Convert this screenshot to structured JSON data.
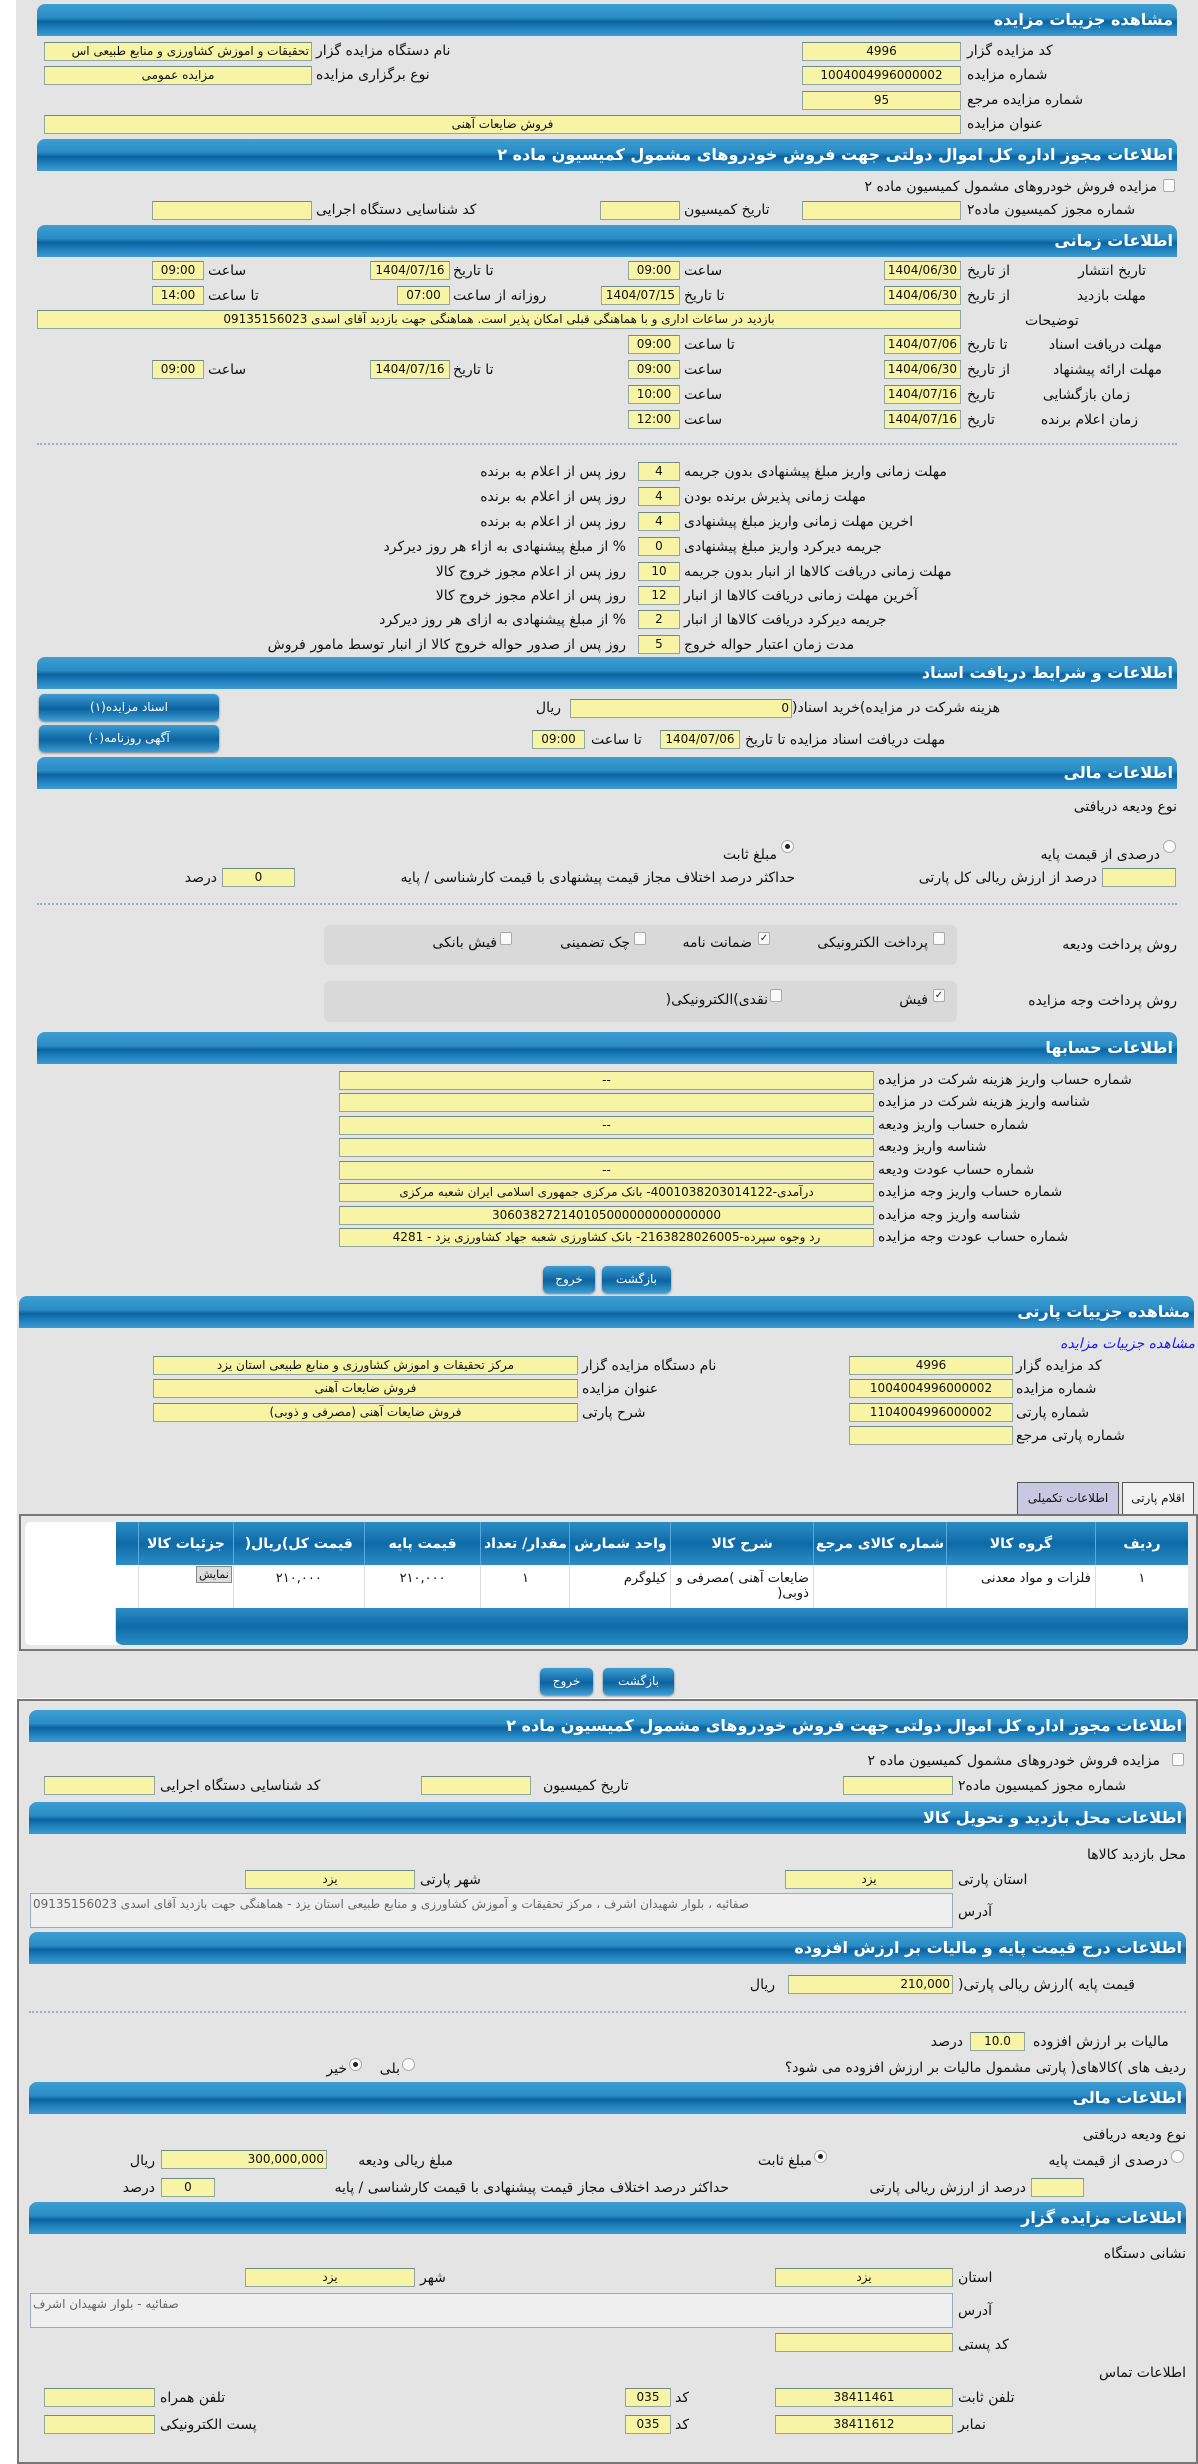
{
  "auction": {
    "title": "مشاهده جزییات مزایده",
    "code_label": "کد مزایده گزار",
    "code": "4996",
    "org_label": "نام دستگاه مزایده گزار",
    "org": "تحقیقات و اموزش کشاورزی و منابع طبیعی اس",
    "number_label": "شماره مزایده",
    "number": "1004004996000002",
    "type_label": "نوع برگزاری مزایده",
    "type": "مزایده عمومی",
    "ref_label": "شماره مزایده مرجع",
    "ref": "95",
    "subject_label": "عنوان مزایده",
    "subject": "فروش ضایعات آهنی"
  },
  "permit": {
    "title": "اطلاعات مجوز اداره کل اموال دولتی جهت فروش خودروهای مشمول کمیسیون ماده ۲",
    "checkbox_label": "مزایده فروش خودروهای مشمول کمیسیون ماده ۲",
    "checked": false,
    "permit_no_label": "شماره مجوز کمیسیون ماده۲",
    "date_label": "تاریخ کمیسیون",
    "exec_code_label": "کد شناسایی دستگاه اجرایی"
  },
  "timing": {
    "title": "اطلاعات زمانی",
    "from_date": "از تاریخ",
    "to_date": "تا تاریخ",
    "date": "تاریخ",
    "time": "ساعت",
    "to_time": "تا ساعت",
    "daily_from": "روزانه از ساعت",
    "publish_label": "تاریخ انتشار",
    "publish_from": "1404/06/30",
    "publish_from_time": "09:00",
    "publish_to": "1404/07/16",
    "publish_to_time": "09:00",
    "visit_label": "مهلت بازدید",
    "visit_from": "1404/06/30",
    "visit_to": "1404/07/15",
    "visit_daily_from": "07:00",
    "visit_daily_to": "14:00",
    "notes_label": "توضیحات",
    "notes": "بازدید در ساعات اداری و با هماهنگی قبلی امکان پذیر است. هماهنگی جهت بازدید آقای اسدی 09135156023",
    "docs_label": "مهلت دریافت اسناد",
    "docs_to": "1404/07/06",
    "docs_to_time": "09:00",
    "offer_label": "مهلت ارائه پیشنهاد",
    "offer_from": "1404/06/30",
    "offer_from_time": "09:00",
    "offer_to": "1404/07/16",
    "offer_to_time": "09:00",
    "opening_label": "زمان بازگشایی",
    "opening_date": "1404/07/16",
    "opening_time": "10:00",
    "winner_label": "زمان اعلام برنده",
    "winner_date": "1404/07/16",
    "winner_time": "12:00"
  },
  "deadlines": [
    {
      "label": "مهلت زمانی واریز مبلغ پیشنهادی بدون جریمه",
      "value": "4",
      "suffix": "روز پس از اعلام به برنده"
    },
    {
      "label": "مهلت زمانی پذیرش برنده بودن",
      "value": "4",
      "suffix": "روز پس از اعلام به برنده"
    },
    {
      "label": "اخرین مهلت زمانی واریز مبلغ پیشنهادی",
      "value": "4",
      "suffix": "روز پس از اعلام به برنده"
    },
    {
      "label": "جریمه دیرکرد واریز مبلغ پیشنهادی",
      "value": "0",
      "suffix": "% از مبلغ پیشنهادی به ازاء هر روز دیرکرد"
    },
    {
      "label": "مهلت زمانی دریافت کالاها از انبار بدون جریمه",
      "value": "10",
      "suffix": "روز پس از اعلام مجوز خروج کالا"
    },
    {
      "label": "آخرین مهلت زمانی دریافت کالاها از انبار",
      "value": "12",
      "suffix": "روز پس از اعلام مجوز خروج کالا"
    },
    {
      "label": "جریمه دیرکرد دریافت کالاها از انبار",
      "value": "2",
      "suffix": "% از مبلغ پیشنهادی به ازای هر روز دیرکرد"
    },
    {
      "label": "مدت زمان اعتبار حواله خروج",
      "value": "5",
      "suffix": "روز پس از صدور حواله خروج کالا از انبار توسط مامور فروش"
    }
  ],
  "documents": {
    "title": "اطلاعات و شرایط دریافت اسناد",
    "fee_label": "هزینه شرکت در مزایده)خرید اسناد(",
    "fee": "0",
    "currency": "ریال",
    "deadline_label": "مهلت دریافت اسناد مزایده تا تاریخ",
    "deadline_date": "1404/07/06",
    "to_time": "تا ساعت",
    "deadline_time": "09:00",
    "docs_button": "اسناد مزایده(۱)",
    "ads_button": "آگهی روزنامه(۰)"
  },
  "finance": {
    "title": "اطلاعات مالی",
    "deposit_type_label": "نوع ودیعه دریافتی",
    "percent_option": "درصدی از قیمت پایه",
    "fixed_option": "مبلغ ثابت",
    "selected": "fixed",
    "percent_of_total_label": "درصد از ارزش ریالی کل پارتی",
    "percent_of_total": "",
    "max_diff_label": "حداکثر درصد اختلاف مجاز قیمت پیشنهادی با قیمت کارشناسی / پایه",
    "max_diff": "0",
    "percent_unit": "درصد",
    "deposit_method_label": "روش پرداخت ودیعه",
    "deposit_methods": [
      {
        "label": "پرداخت الکترونیکی",
        "checked": false
      },
      {
        "label": "ضمانت نامه",
        "checked": true
      },
      {
        "label": "چک تضمینی",
        "checked": false
      },
      {
        "label": "فیش بانکی",
        "checked": false
      }
    ],
    "payment_method_label": "روش پرداخت وجه مزایده",
    "payment_methods": [
      {
        "label": "فیش",
        "checked": true
      },
      {
        "label": "نقدی)الکترونیکی(",
        "checked": false
      }
    ]
  },
  "accounts": {
    "title": "اطلاعات حسابها",
    "rows": [
      {
        "label": "شماره حساب واریز هزینه شرکت در مزایده",
        "value": "--"
      },
      {
        "label": "شناسه واریز هزینه شرکت در مزایده",
        "value": ""
      },
      {
        "label": "شماره حساب واریز ودیعه",
        "value": "--"
      },
      {
        "label": "شناسه واریز ودیعه",
        "value": ""
      },
      {
        "label": "شماره حساب عودت ودیعه",
        "value": "--"
      },
      {
        "label": "شماره حساب واریز وجه مزایده",
        "value": "درآمدی-4001038203014122- بانک مرکزی جمهوری اسلامی ایران شعبه مرکزی"
      },
      {
        "label": "شناسه واریز وجه مزایده",
        "value": "306038272140105000000000000000"
      },
      {
        "label": "شماره حساب عودت وجه مزایده",
        "value": "رد وجوه سپرده-2163828026005- بانک کشاورزی شعبه جهاد کشاورزی یزد - 4281"
      }
    ]
  },
  "buttons": {
    "back": "بازگشت",
    "exit": "خروج"
  },
  "party": {
    "title": "مشاهده جزییات پارتی",
    "auction_link": "مشاهده جزییات مزایده",
    "code_label": "کد مزایده گزار",
    "code": "4996",
    "org_label": "نام دستگاه مزایده گزار",
    "org": "مرکز تحقیقات و اموزش کشاورزی و منابع طبیعی استان یزد",
    "number_label": "شماره مزایده",
    "number": "1004004996000002",
    "subject_label": "عنوان مزایده",
    "subject": "فروش ضایعات آهنی",
    "party_no_label": "شماره پارتی",
    "party_no": "1104004996000002",
    "desc_label": "شرح پارتی",
    "desc": "فروش ضایعات آهنی (مصرفی و ذوبی)",
    "ref_label": "شماره پارتی مرجع",
    "ref": "",
    "tabs": [
      "اقلام پارتی",
      "اطلاعات تکمیلی"
    ],
    "active_tab": "اطلاعات تکمیلی",
    "table": {
      "headers": [
        "ردیف",
        "گروه کالا",
        "شماره کالای مرجع",
        "شرح کالا",
        "واحد شمارش",
        "مقدار/ تعداد",
        "قیمت پایه",
        "قیمت کل)ریال(",
        "جزئیات کالا"
      ],
      "rows": [
        [
          "۱",
          "فلزات و مواد معدنی",
          "",
          "ضایعات آهنی )مصرفی و ذوبی(",
          "کیلوگرم",
          "۱",
          "۲۱۰,۰۰۰",
          "۲۱۰,۰۰۰",
          "نمایش"
        ]
      ]
    }
  },
  "extra": {
    "permit_title": "اطلاعات مجوز اداره کل اموال دولتی جهت فروش خودروهای مشمول کمیسیون ماده ۲",
    "permit_checkbox": "مزایده فروش خودروهای مشمول کمیسیون ماده ۲",
    "permit_no_label": "شماره مجوز کمیسیون ماده۲",
    "permit_date_label": "تاریخ کمیسیون",
    "exec_code_label": "کد شناسایی دستگاه اجرایی",
    "visit_title": "اطلاعات محل بازدید و تحویل کالا",
    "visit_place_label": "محل بازدید کالاها",
    "province_label": "استان پارتی",
    "province": "یزد",
    "city_label": "شهر پارتی",
    "city": "یزد",
    "address_label": "آدرس",
    "address": "صفائیه ، بلوار شهیدان اشرف ، مرکز تحقیقات و آموزش کشاورزی و منابع طبیعی استان یزد - هماهنگی جهت بازدید آقای اسدی 09135156023",
    "price_title": "اطلاعات درج قیمت پایه و مالیات بر ارزش افزوده",
    "base_price_label": "قیمت پایه )ارزش ریالی پارتی(",
    "base_price": "210,000",
    "currency": "ریال",
    "vat_label": "مالیات بر ارزش افزوده",
    "vat": "10.0",
    "percent_unit": "درصد",
    "vat_question": "ردیف های )کالاهای( پارتی مشمول مالیات بر ارزش افزوده می شود؟",
    "yes": "بلی",
    "no": "خیر",
    "vat_selected": "no",
    "finance_title": "اطلاعات مالی",
    "deposit_type_label": "نوع ودیعه دریافتی",
    "percent_option": "درصدی از قیمت پایه",
    "fixed_option": "مبلغ ثابت",
    "deposit_amount_label": "مبلغ ریالی ودیعه",
    "deposit_amount": "300,000,000",
    "percent_of_party_label": "درصد از ارزش ریالی پارتی",
    "percent_of_party": "",
    "max_diff_label": "حداکثر درصد اختلاف مجاز قیمت پیشنهادی با قیمت کارشناسی / پایه",
    "max_diff": "0",
    "auctioneer_title": "اطلاعات مزایده گزار",
    "org_address_label": "نشانی دستگاه",
    "org_province_label": "استان",
    "org_province": "یزد",
    "org_city_label": "شهر",
    "org_city": "یزد",
    "org_address": "صفائیه - بلوار شهیدان اشرف",
    "postal_label": "کد پستی",
    "postal": "",
    "contact_label": "اطلاعات تماس",
    "phone_label": "تلفن ثابت",
    "phone": "38411461",
    "code_label": "کد",
    "phone_code": "035",
    "mobile_label": "تلفن همراه",
    "mobile": "",
    "fax_label": "نمابر",
    "fax": "38411612",
    "fax_code": "035",
    "email_label": "پست الکترونیکی",
    "email": ""
  }
}
